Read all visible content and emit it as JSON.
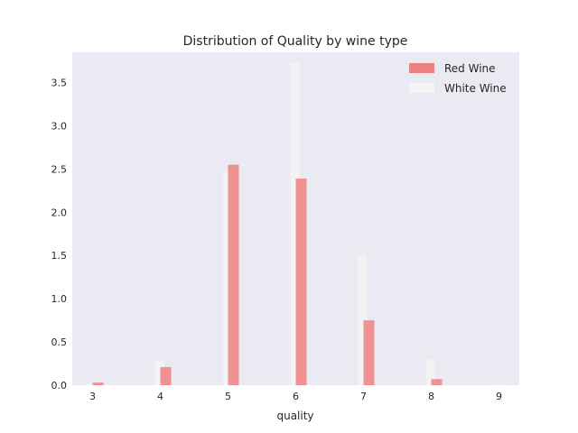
{
  "chart_data": {
    "type": "bar",
    "title": "Distribution of Quality by wine type",
    "xlabel": "quality",
    "ylabel": "",
    "xlim": [
      2.7,
      9.3
    ],
    "ylim": [
      0,
      3.85
    ],
    "x_ticks": [
      "3",
      "4",
      "5",
      "6",
      "7",
      "8",
      "9"
    ],
    "y_ticks": [
      "0.0",
      "0.5",
      "1.0",
      "1.5",
      "2.0",
      "2.5",
      "3.0",
      "3.5"
    ],
    "grid": false,
    "legend_position": "top-right",
    "series": [
      {
        "name": "Red Wine",
        "color": "#f08080",
        "x": [
          3,
          4,
          5,
          6,
          7,
          8
        ],
        "values": [
          0.03,
          0.21,
          2.55,
          2.39,
          0.75,
          0.07
        ]
      },
      {
        "name": "White Wine",
        "color": "#f5f5f5",
        "x": [
          3,
          4,
          5,
          6,
          7,
          8,
          9
        ],
        "values": [
          0.02,
          0.28,
          2.47,
          3.73,
          1.5,
          0.3,
          0.005
        ]
      }
    ],
    "colors": {
      "plot_background": "#eaeaf2",
      "text": "#262626"
    }
  }
}
